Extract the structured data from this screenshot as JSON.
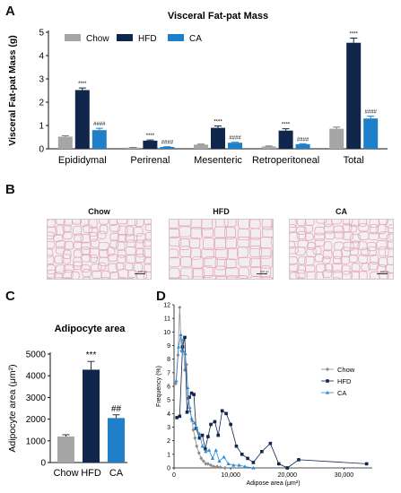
{
  "panels": {
    "a": "A",
    "b": "B",
    "c": "C",
    "d": "D"
  },
  "chart_data": [
    {
      "type": "bar",
      "title": "Visceral Fat-pat Mass",
      "ylabel": "Visceral Fat-pat Mass (g)",
      "xlabel": "",
      "categories": [
        "Epididymal",
        "Perirenal",
        "Mesenteric",
        "Retroperitoneal",
        "Total"
      ],
      "ylim": [
        0,
        5
      ],
      "yticks": [
        "0",
        "1",
        "2",
        "3",
        "4",
        "5"
      ],
      "legend_position": "top-left",
      "series": [
        {
          "name": "Chow",
          "color": "#a6a6a6",
          "values": [
            0.52,
            0.05,
            0.18,
            0.1,
            0.86
          ],
          "errors": [
            0.04,
            0.01,
            0.02,
            0.02,
            0.07
          ],
          "labels": [
            "",
            "",
            "",
            "",
            ""
          ]
        },
        {
          "name": "HFD",
          "color": "#10264a",
          "values": [
            2.52,
            0.35,
            0.9,
            0.78,
            4.55
          ],
          "errors": [
            0.09,
            0.03,
            0.08,
            0.08,
            0.2
          ],
          "labels": [
            "****",
            "****",
            "****",
            "****",
            "****"
          ]
        },
        {
          "name": "CA",
          "color": "#1f7fc8",
          "values": [
            0.8,
            0.08,
            0.26,
            0.2,
            1.3
          ],
          "errors": [
            0.08,
            0.01,
            0.02,
            0.02,
            0.1
          ],
          "labels": [
            "####",
            "####",
            "####",
            "####",
            "####"
          ]
        }
      ]
    },
    {
      "type": "bar",
      "title": "Adipocyte area",
      "ylabel": "Adipocyte area (μm²)",
      "xlabel": "",
      "categories": [
        "Chow",
        "HFD",
        "CA"
      ],
      "ylim": [
        0,
        5000
      ],
      "yticks": [
        "0",
        "1000",
        "2000",
        "3000",
        "4000",
        "5000"
      ],
      "colors": [
        "#a6a6a6",
        "#10264a",
        "#1f7fc8"
      ],
      "values": [
        1200,
        4280,
        2050
      ],
      "errors": [
        80,
        380,
        150
      ],
      "labels": [
        "",
        "***",
        "##"
      ]
    },
    {
      "type": "line",
      "title": "",
      "xlabel": "Adipose area (μm²)",
      "ylabel": "Frequency (%)",
      "xlim": [
        0,
        35000
      ],
      "ylim": [
        0,
        12
      ],
      "xticks": [
        0,
        10000,
        20000,
        30000
      ],
      "xtick_labels": [
        "0",
        "10,000",
        "20,000",
        "30,000"
      ],
      "yticks": [
        "0",
        "1",
        "2",
        "3",
        "4",
        "5",
        "6",
        "7",
        "8",
        "9",
        "10",
        "11",
        "12"
      ],
      "legend_position": "right",
      "series": [
        {
          "name": "Chow",
          "color": "#8c8c8c",
          "marker": "diamond",
          "x": [
            300,
            700,
            1000,
            1300,
            1600,
            1900,
            2200,
            2500,
            2800,
            3100,
            3400,
            3700,
            4000,
            4400,
            4800,
            5200,
            5600,
            6000,
            6500,
            7000,
            7600,
            8200,
            9000
          ],
          "y": [
            6.2,
            8.3,
            11.8,
            8.6,
            9.4,
            7.2,
            7.6,
            5.1,
            4.4,
            3.6,
            2.8,
            2.2,
            1.6,
            1.1,
            0.7,
            0.5,
            0.3,
            0.3,
            0.2,
            0.1,
            0.1,
            0.05,
            0
          ]
        },
        {
          "name": "HFD",
          "color": "#10264a",
          "marker": "square",
          "x": [
            500,
            1000,
            1500,
            1900,
            2300,
            2700,
            3100,
            3500,
            3900,
            4500,
            5000,
            5500,
            6000,
            6500,
            7200,
            7800,
            8500,
            9200,
            10000,
            11000,
            12000,
            13000,
            14000,
            15500,
            17000,
            18500,
            20000,
            22000,
            34000
          ],
          "y": [
            3.7,
            3.8,
            8.9,
            9.6,
            4.1,
            5.2,
            5.5,
            5.4,
            2.9,
            2.2,
            2.4,
            1.4,
            2.3,
            3.2,
            3.4,
            2.4,
            4.2,
            4.0,
            3.2,
            1.6,
            1.0,
            0.7,
            0.4,
            1.2,
            1.8,
            0.3,
            0,
            0.6,
            0.3
          ]
        },
        {
          "name": "CA",
          "color": "#2e8bd6",
          "marker": "triangle",
          "x": [
            400,
            800,
            1200,
            1600,
            2000,
            2400,
            2800,
            3200,
            3600,
            4000,
            4500,
            5000,
            5600,
            6200,
            6800,
            7400,
            8000,
            8800,
            9600,
            10500,
            11500,
            12500,
            14000
          ],
          "y": [
            6.4,
            8.9,
            9.8,
            8.6,
            8.4,
            5.9,
            4.2,
            3.5,
            3.3,
            2.9,
            2.5,
            1.6,
            1.2,
            1.3,
            0.7,
            1.3,
            0.5,
            0.8,
            0.3,
            0.2,
            0.2,
            0.1,
            0
          ]
        }
      ]
    }
  ],
  "histology": [
    {
      "label": "Chow",
      "scalebar": "100 μm",
      "tint": "#f3eef0"
    },
    {
      "label": "HFD",
      "scalebar": "100 μm",
      "tint": "#f2eeef"
    },
    {
      "label": "CA",
      "scalebar": "100 μm",
      "tint": "#f4eff1"
    }
  ]
}
